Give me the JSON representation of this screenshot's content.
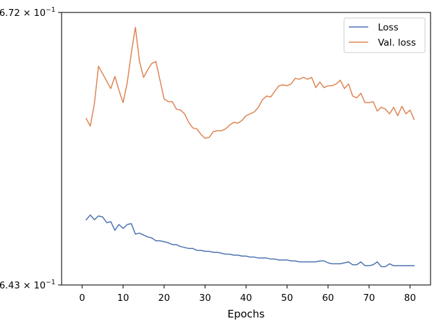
{
  "chart_data": {
    "type": "line",
    "title": "",
    "xlabel": "Epochs",
    "ylabel": "",
    "xlim": [
      -5,
      85
    ],
    "ylim": [
      0.6434,
      0.6723
    ],
    "y_scale": "log",
    "grid": false,
    "legend_position": "top-right",
    "x_ticks": [
      0,
      10,
      20,
      30,
      40,
      50,
      60,
      70,
      80
    ],
    "y_tick_labels": [
      {
        "mantissa": "6.43",
        "base": "10",
        "exp": "−1",
        "value": 0.6434
      },
      {
        "mantissa": "6.72",
        "base": "10",
        "exp": "−1",
        "value": 0.6723
      }
    ],
    "x": [
      1,
      2,
      3,
      4,
      5,
      6,
      7,
      8,
      9,
      10,
      11,
      12,
      13,
      14,
      15,
      16,
      17,
      18,
      19,
      20,
      21,
      22,
      23,
      24,
      25,
      26,
      27,
      28,
      29,
      30,
      31,
      32,
      33,
      34,
      35,
      36,
      37,
      38,
      39,
      40,
      41,
      42,
      43,
      44,
      45,
      46,
      47,
      48,
      49,
      50,
      51,
      52,
      53,
      54,
      55,
      56,
      57,
      58,
      59,
      60,
      61,
      62,
      63,
      64,
      65,
      66,
      67,
      68,
      69,
      70,
      71,
      72,
      73,
      74,
      75,
      76,
      77,
      78,
      79,
      80,
      81
    ],
    "series": [
      {
        "name": "Loss",
        "color": "#4c72b0",
        "values": [
          0.6502,
          0.6507,
          0.6502,
          0.6506,
          0.6505,
          0.6499,
          0.65,
          0.6491,
          0.6497,
          0.6493,
          0.6497,
          0.6498,
          0.6487,
          0.6488,
          0.6486,
          0.6484,
          0.6483,
          0.648,
          0.648,
          0.6479,
          0.6478,
          0.6476,
          0.6476,
          0.6474,
          0.6473,
          0.6472,
          0.6472,
          0.647,
          0.647,
          0.6469,
          0.6469,
          0.6468,
          0.6468,
          0.6467,
          0.6466,
          0.6466,
          0.6465,
          0.6465,
          0.6464,
          0.6464,
          0.6463,
          0.6463,
          0.6462,
          0.6462,
          0.6462,
          0.6461,
          0.6461,
          0.646,
          0.646,
          0.646,
          0.6459,
          0.6459,
          0.6458,
          0.6458,
          0.6458,
          0.6458,
          0.6458,
          0.6459,
          0.6459,
          0.6457,
          0.6456,
          0.6456,
          0.6456,
          0.6457,
          0.6458,
          0.6455,
          0.6455,
          0.6458,
          0.6454,
          0.6454,
          0.6455,
          0.6458,
          0.6453,
          0.6453,
          0.6456,
          0.6454,
          0.6454,
          0.6454,
          0.6454,
          0.6454,
          0.6454
        ]
      },
      {
        "name": "Val. loss",
        "color": "#dd8452",
        "values": [
          0.6609,
          0.6601,
          0.6625,
          0.6665,
          0.6657,
          0.6649,
          0.6641,
          0.6654,
          0.6639,
          0.6626,
          0.6647,
          0.6679,
          0.6707,
          0.667,
          0.6653,
          0.6661,
          0.6668,
          0.667,
          0.665,
          0.663,
          0.6627,
          0.6627,
          0.6619,
          0.6618,
          0.6614,
          0.6605,
          0.6599,
          0.6598,
          0.6592,
          0.6588,
          0.6589,
          0.6595,
          0.6596,
          0.6596,
          0.6598,
          0.6602,
          0.6605,
          0.6604,
          0.6607,
          0.6612,
          0.6614,
          0.6616,
          0.6621,
          0.6629,
          0.6633,
          0.6632,
          0.6638,
          0.6644,
          0.6645,
          0.6644,
          0.6646,
          0.6652,
          0.6651,
          0.6653,
          0.6651,
          0.6653,
          0.6642,
          0.6648,
          0.6642,
          0.6644,
          0.6644,
          0.6646,
          0.665,
          0.6641,
          0.6646,
          0.6633,
          0.6631,
          0.6636,
          0.6626,
          0.6626,
          0.6627,
          0.6617,
          0.6621,
          0.6619,
          0.6614,
          0.6621,
          0.6612,
          0.6622,
          0.6614,
          0.6618,
          0.6608
        ]
      }
    ]
  }
}
